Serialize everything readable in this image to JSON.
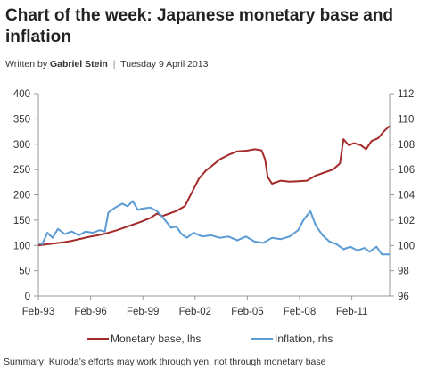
{
  "header": {
    "title": "Chart of the week: Japanese monetary base and inflation",
    "written_by": "Written by",
    "author": "Gabriel Stein",
    "separator": "|",
    "date": "Tuesday 9 April 2013"
  },
  "footer": {
    "summary": "Summary: Kuroda’s efforts may work through yen, not through monetary base"
  },
  "colors": {
    "monetary_base": "#a52a2a",
    "inflation": "#5b9bd5",
    "axis": "#999999"
  },
  "chart_data": {
    "type": "line",
    "xlabel": "",
    "ylabel_left": "",
    "ylabel_right": "",
    "x_ticks": [
      "Feb-93",
      "Feb-96",
      "Feb-99",
      "Feb-02",
      "Feb-05",
      "Feb-08",
      "Feb-11"
    ],
    "x_range": [
      1993.08,
      2013.25
    ],
    "ylim_left": [
      0,
      400
    ],
    "yticks_left": [
      0,
      50,
      100,
      150,
      200,
      250,
      300,
      350,
      400
    ],
    "ylim_right": [
      96,
      112
    ],
    "yticks_right": [
      96,
      98,
      100,
      102,
      104,
      106,
      108,
      110,
      112
    ],
    "grid": false,
    "legend_position": "bottom",
    "series": [
      {
        "name": "Monetary base, lhs",
        "axis": "left",
        "points": [
          [
            1993.08,
            100
          ],
          [
            1993.5,
            102
          ],
          [
            1994.0,
            104
          ],
          [
            1994.5,
            106
          ],
          [
            1995.0,
            109
          ],
          [
            1995.5,
            113
          ],
          [
            1996.0,
            117
          ],
          [
            1996.5,
            120
          ],
          [
            1997.0,
            124
          ],
          [
            1997.5,
            129
          ],
          [
            1998.0,
            135
          ],
          [
            1998.5,
            141
          ],
          [
            1999.0,
            147
          ],
          [
            1999.5,
            154
          ],
          [
            1999.9,
            163
          ],
          [
            2000.2,
            158
          ],
          [
            2000.6,
            163
          ],
          [
            2001.0,
            168
          ],
          [
            2001.5,
            178
          ],
          [
            2001.9,
            205
          ],
          [
            2002.3,
            232
          ],
          [
            2002.7,
            248
          ],
          [
            2003.0,
            256
          ],
          [
            2003.5,
            270
          ],
          [
            2004.0,
            279
          ],
          [
            2004.5,
            286
          ],
          [
            2005.0,
            287
          ],
          [
            2005.5,
            290
          ],
          [
            2005.9,
            288
          ],
          [
            2006.1,
            270
          ],
          [
            2006.25,
            235
          ],
          [
            2006.5,
            222
          ],
          [
            2007.0,
            228
          ],
          [
            2007.5,
            226
          ],
          [
            2008.0,
            227
          ],
          [
            2008.5,
            228
          ],
          [
            2009.0,
            238
          ],
          [
            2009.5,
            244
          ],
          [
            2010.0,
            250
          ],
          [
            2010.4,
            262
          ],
          [
            2010.6,
            310
          ],
          [
            2010.9,
            298
          ],
          [
            2011.2,
            302
          ],
          [
            2011.6,
            298
          ],
          [
            2011.9,
            290
          ],
          [
            2012.2,
            306
          ],
          [
            2012.6,
            312
          ],
          [
            2012.9,
            325
          ],
          [
            2013.25,
            336
          ]
        ]
      },
      {
        "name": "Inflation, rhs",
        "axis": "right",
        "points": [
          [
            1993.08,
            100.2
          ],
          [
            1993.3,
            100.1
          ],
          [
            1993.6,
            101.0
          ],
          [
            1993.9,
            100.6
          ],
          [
            1994.2,
            101.3
          ],
          [
            1994.6,
            100.9
          ],
          [
            1995.0,
            101.1
          ],
          [
            1995.4,
            100.8
          ],
          [
            1995.8,
            101.1
          ],
          [
            1996.2,
            101.0
          ],
          [
            1996.6,
            101.2
          ],
          [
            1996.9,
            101.1
          ],
          [
            1997.1,
            102.6
          ],
          [
            1997.5,
            103.0
          ],
          [
            1997.9,
            103.3
          ],
          [
            1998.2,
            103.1
          ],
          [
            1998.5,
            103.5
          ],
          [
            1998.8,
            102.8
          ],
          [
            1999.0,
            102.9
          ],
          [
            1999.5,
            103.0
          ],
          [
            1999.9,
            102.7
          ],
          [
            2000.3,
            102.1
          ],
          [
            2000.7,
            101.4
          ],
          [
            2001.0,
            101.5
          ],
          [
            2001.3,
            100.9
          ],
          [
            2001.6,
            100.6
          ],
          [
            2002.0,
            101.0
          ],
          [
            2002.5,
            100.7
          ],
          [
            2003.0,
            100.8
          ],
          [
            2003.5,
            100.6
          ],
          [
            2004.0,
            100.7
          ],
          [
            2004.5,
            100.4
          ],
          [
            2005.0,
            100.7
          ],
          [
            2005.5,
            100.3
          ],
          [
            2006.0,
            100.2
          ],
          [
            2006.5,
            100.6
          ],
          [
            2007.0,
            100.5
          ],
          [
            2007.5,
            100.7
          ],
          [
            2008.0,
            101.2
          ],
          [
            2008.3,
            102.0
          ],
          [
            2008.7,
            102.7
          ],
          [
            2009.0,
            101.6
          ],
          [
            2009.4,
            100.8
          ],
          [
            2009.8,
            100.3
          ],
          [
            2010.2,
            100.1
          ],
          [
            2010.6,
            99.7
          ],
          [
            2011.0,
            99.9
          ],
          [
            2011.4,
            99.6
          ],
          [
            2011.8,
            99.8
          ],
          [
            2012.1,
            99.5
          ],
          [
            2012.5,
            99.9
          ],
          [
            2012.8,
            99.3
          ],
          [
            2013.25,
            99.3
          ]
        ]
      }
    ]
  }
}
